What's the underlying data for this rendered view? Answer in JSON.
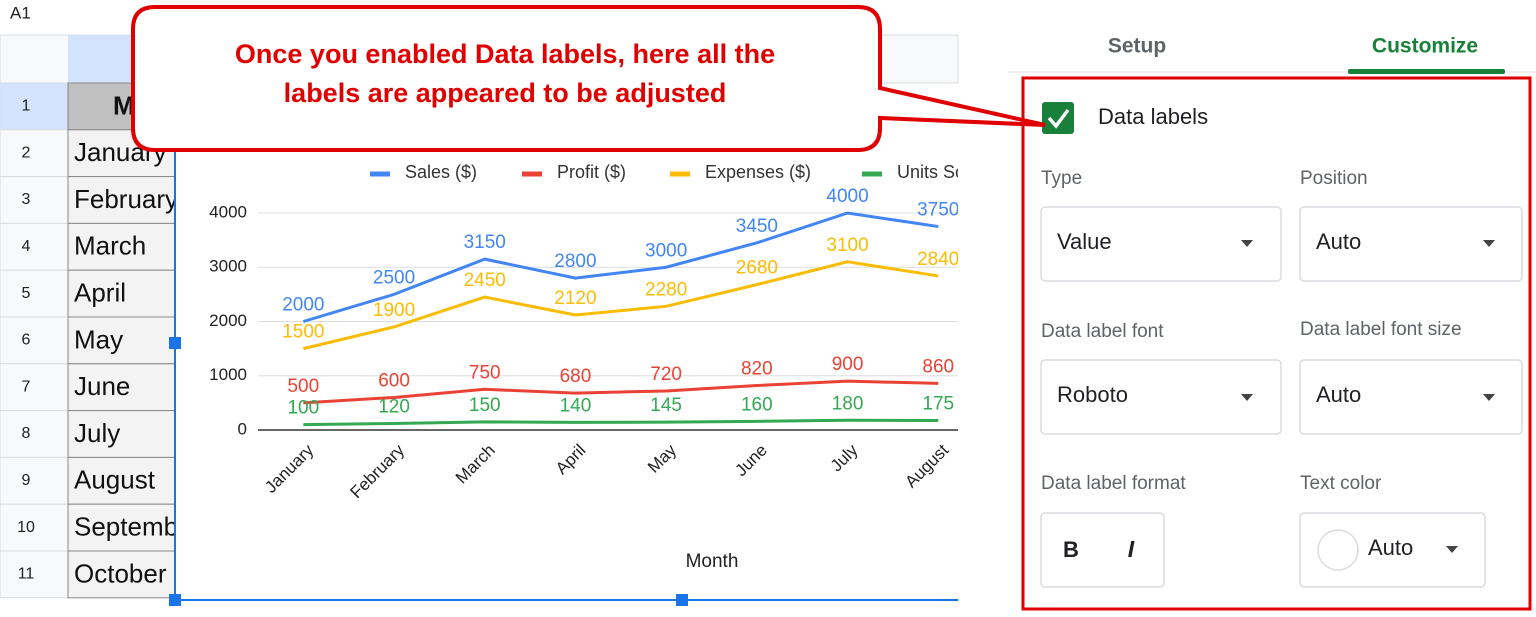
{
  "sheet": {
    "name_box": "A1",
    "row_numbers": [
      1,
      2,
      3,
      4,
      5,
      6,
      7,
      8,
      9,
      10,
      11
    ],
    "column_a": [
      "Month",
      "January",
      "February",
      "March",
      "April",
      "May",
      "June",
      "July",
      "August",
      "September",
      "October"
    ]
  },
  "chart_data": {
    "type": "line",
    "x_label": "Month",
    "legend": "top",
    "grid": true,
    "data_labels": true,
    "categories": [
      "January",
      "February",
      "March",
      "April",
      "May",
      "June",
      "July",
      "August"
    ],
    "series": [
      {
        "name": "Sales ($)",
        "color": "#4285f4",
        "values": [
          2000,
          2500,
          3150,
          2800,
          3000,
          3450,
          4000,
          3750
        ]
      },
      {
        "name": "Profit ($)",
        "color": "#ea4335",
        "values": [
          500,
          600,
          750,
          680,
          720,
          820,
          900,
          860
        ]
      },
      {
        "name": "Expenses ($)",
        "color": "#fbbc04",
        "values": [
          1500,
          1900,
          2450,
          2120,
          2280,
          2680,
          3100,
          2840
        ]
      },
      {
        "name": "Units Sold",
        "color": "#34a853",
        "values": [
          100,
          120,
          150,
          140,
          145,
          160,
          180,
          175
        ]
      }
    ],
    "ylim": [
      0,
      4000
    ],
    "yticks": [
      0,
      1000,
      2000,
      3000,
      4000
    ]
  },
  "callout": {
    "lines": [
      "Once you enabled Data labels, here all the",
      "labels are appeared to be adjusted"
    ]
  },
  "panel": {
    "tabs": [
      "Setup",
      "Customize"
    ],
    "data_labels": "Data labels",
    "type_label": "Type",
    "type_value": "Value",
    "position_label": "Position",
    "position_value": "Auto",
    "font_label": "Data label font",
    "font_value": "Roboto",
    "font_size_label": "Data label font size",
    "font_size_value": "Auto",
    "format_label": "Data label format",
    "bold": "B",
    "italic": "I",
    "text_color_label": "Text color",
    "text_color_value": "Auto"
  }
}
